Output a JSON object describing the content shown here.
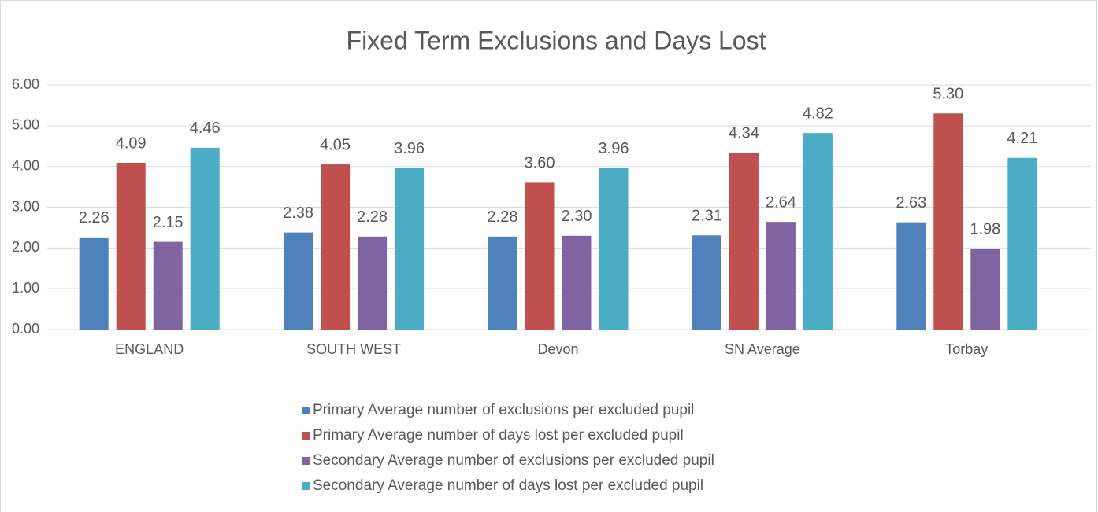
{
  "chart_data": {
    "type": "bar",
    "title": "Fixed Term Exclusions and Days Lost",
    "categories": [
      "ENGLAND",
      "SOUTH WEST",
      "Devon",
      "SN Average",
      "Torbay"
    ],
    "series": [
      {
        "name": "Primary Average number of exclusions per excluded pupil",
        "color": "#4f81bd",
        "values": [
          2.26,
          2.38,
          2.28,
          2.31,
          2.63
        ],
        "value_labels": [
          "2.26",
          "2.38",
          "2.28",
          "2.31",
          "2.63"
        ]
      },
      {
        "name": "Primary Average number of days lost per excluded pupil",
        "color": "#c0504d",
        "values": [
          4.09,
          4.05,
          3.6,
          4.34,
          5.3
        ],
        "value_labels": [
          "4.09",
          "4.05",
          "3.60",
          "4.34",
          "5.30"
        ]
      },
      {
        "name": "Secondary Average number of exclusions per excluded pupil",
        "color": "#8064a2",
        "values": [
          2.15,
          2.28,
          2.3,
          2.64,
          1.98
        ],
        "value_labels": [
          "2.15",
          "2.28",
          "2.30",
          "2.64",
          "1.98"
        ]
      },
      {
        "name": "Secondary Average number of days lost per excluded pupil",
        "color": "#4bacc6",
        "values": [
          4.46,
          3.96,
          3.96,
          4.82,
          4.21
        ],
        "value_labels": [
          "4.46",
          "3.96",
          "3.96",
          "4.82",
          "4.21"
        ]
      }
    ],
    "ylim": [
      0,
      6
    ],
    "yticks": [
      {
        "value": 0,
        "label": "0.00"
      },
      {
        "value": 1,
        "label": "1.00"
      },
      {
        "value": 2,
        "label": "2.00"
      },
      {
        "value": 3,
        "label": "3.00"
      },
      {
        "value": 4,
        "label": "4.00"
      },
      {
        "value": 5,
        "label": "5.00"
      },
      {
        "value": 6,
        "label": "6.00"
      }
    ],
    "grid": true,
    "legend": "bottom"
  }
}
